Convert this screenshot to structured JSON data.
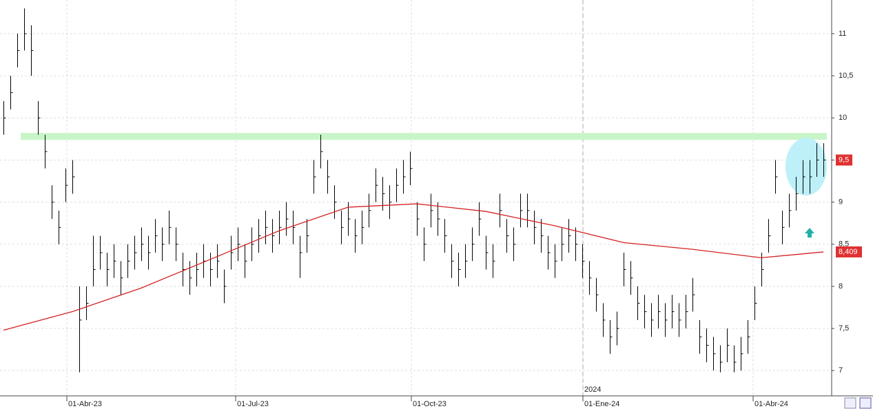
{
  "chart_data": {
    "type": "ohlc",
    "high": [
      10.2,
      10.5,
      11.0,
      11.3,
      11.1,
      10.2,
      9.8,
      9.2,
      8.9,
      9.4,
      9.5,
      8.0,
      8.0,
      8.6,
      8.6,
      8.4,
      8.5,
      8.3,
      8.5,
      8.6,
      8.7,
      8.6,
      8.8,
      8.7,
      8.9,
      8.7,
      8.4,
      8.3,
      8.4,
      8.5,
      8.4,
      8.5,
      8.2,
      8.6,
      8.7,
      8.5,
      8.7,
      8.8,
      8.9,
      8.8,
      8.9,
      9.0,
      8.9,
      8.6,
      8.8,
      9.5,
      9.8,
      9.5,
      9.2,
      8.9,
      9.0,
      8.8,
      8.9,
      9.1,
      9.4,
      9.3,
      9.2,
      9.4,
      9.5,
      9.6,
      9.0,
      8.7,
      9.1,
      9.0,
      8.8,
      8.5,
      8.4,
      8.5,
      8.7,
      9.0,
      8.6,
      8.5,
      9.1,
      8.8,
      8.7,
      9.1,
      9.1,
      8.9,
      8.8,
      8.6,
      8.5,
      8.7,
      8.8,
      8.7,
      8.5,
      8.3,
      8.1,
      7.8,
      7.6,
      7.7,
      8.4,
      8.3,
      8.0,
      7.9,
      7.8,
      7.9,
      7.8,
      7.9,
      7.8,
      7.9,
      8.1,
      7.6,
      7.5,
      7.4,
      7.3,
      7.5,
      7.3,
      7.4,
      7.6,
      8.0,
      8.4,
      8.8,
      9.5,
      8.9,
      9.1,
      9.3,
      9.5,
      9.5,
      9.7,
      9.7
    ],
    "low": [
      9.8,
      10.1,
      10.6,
      10.8,
      10.5,
      9.8,
      9.4,
      8.8,
      8.5,
      9.0,
      9.1,
      6.98,
      7.6,
      8.0,
      8.2,
      8.0,
      8.1,
      7.9,
      8.1,
      8.2,
      8.3,
      8.2,
      8.4,
      8.3,
      8.5,
      8.3,
      8.0,
      7.9,
      8.0,
      8.1,
      8.0,
      8.1,
      7.8,
      8.2,
      8.3,
      8.1,
      8.3,
      8.4,
      8.5,
      8.4,
      8.5,
      8.6,
      8.5,
      8.1,
      8.4,
      9.1,
      9.4,
      9.1,
      8.8,
      8.5,
      8.6,
      8.4,
      8.5,
      8.7,
      9.0,
      8.9,
      8.8,
      9.0,
      9.1,
      9.2,
      8.6,
      8.3,
      8.7,
      8.6,
      8.4,
      8.1,
      8.0,
      8.1,
      8.3,
      8.6,
      8.2,
      8.1,
      8.7,
      8.4,
      8.3,
      8.7,
      8.7,
      8.5,
      8.4,
      8.2,
      8.1,
      8.3,
      8.4,
      8.3,
      8.1,
      7.9,
      7.7,
      7.4,
      7.2,
      7.3,
      8.0,
      7.9,
      7.6,
      7.5,
      7.4,
      7.5,
      7.4,
      7.5,
      7.4,
      7.5,
      7.7,
      7.2,
      7.1,
      7.0,
      6.98,
      7.1,
      6.98,
      7.0,
      7.2,
      7.6,
      8.0,
      8.4,
      9.1,
      8.5,
      8.7,
      8.9,
      9.1,
      9.1,
      9.3,
      9.3
    ],
    "close": [
      10.0,
      10.3,
      10.8,
      11.0,
      10.8,
      10.0,
      9.6,
      9.0,
      8.7,
      9.2,
      9.3,
      7.6,
      7.8,
      8.2,
      8.4,
      8.2,
      8.3,
      8.1,
      8.3,
      8.4,
      8.5,
      8.4,
      8.6,
      8.5,
      8.7,
      8.5,
      8.2,
      8.1,
      8.2,
      8.3,
      8.2,
      8.3,
      8.0,
      8.4,
      8.5,
      8.3,
      8.5,
      8.6,
      8.7,
      8.6,
      8.7,
      8.8,
      8.7,
      8.4,
      8.6,
      9.3,
      9.6,
      9.3,
      9.0,
      8.7,
      8.8,
      8.6,
      8.7,
      8.9,
      9.2,
      9.1,
      9.0,
      9.2,
      9.3,
      9.4,
      8.8,
      8.5,
      8.9,
      8.8,
      8.6,
      8.3,
      8.2,
      8.3,
      8.5,
      8.8,
      8.4,
      8.3,
      8.9,
      8.6,
      8.5,
      8.9,
      8.9,
      8.7,
      8.6,
      8.4,
      8.3,
      8.5,
      8.6,
      8.5,
      8.3,
      8.1,
      7.9,
      7.6,
      7.4,
      7.5,
      8.2,
      8.1,
      7.8,
      7.7,
      7.6,
      7.7,
      7.6,
      7.7,
      7.6,
      7.7,
      7.9,
      7.4,
      7.3,
      7.2,
      7.1,
      7.3,
      7.1,
      7.2,
      7.4,
      7.8,
      8.2,
      8.6,
      9.3,
      8.7,
      8.9,
      9.1,
      9.3,
      9.3,
      9.5,
      9.5
    ],
    "close_last_label": "9,5",
    "color": "#000000",
    "ma": {
      "color": "#d42020",
      "x": [
        0,
        10,
        20,
        30,
        40,
        50,
        60,
        70,
        80,
        90,
        100,
        110,
        119
      ],
      "values": [
        7.48,
        7.7,
        7.98,
        8.32,
        8.66,
        8.94,
        8.98,
        8.89,
        8.72,
        8.52,
        8.44,
        8.34,
        8.409
      ],
      "last_label": "8,409"
    },
    "resistance": {
      "value": 9.78,
      "color": "#c8f5c8"
    },
    "year_label": "2024",
    "xlim": [
      -0.5,
      120.2
    ],
    "xticks": [
      {
        "value": 9.2,
        "label": "01-Abr-23"
      },
      {
        "value": 33.7,
        "label": "01-Jul-23"
      },
      {
        "value": 59.2,
        "label": "01-Oct-23"
      },
      {
        "value": 84.1,
        "label": "01-Ene-24"
      },
      {
        "value": 108.8,
        "label": "01-Abr-24"
      }
    ],
    "ylim": [
      6.7,
      11.4
    ],
    "yticks": [
      7,
      {
        "value": 7.5,
        "label": "7,5"
      },
      8,
      {
        "value": 8.5,
        "label": "8,5"
      },
      9,
      {
        "value": 9.5,
        "label": "9,5"
      },
      10,
      {
        "value": 10.5,
        "label": "10,5"
      },
      11
    ],
    "grid": true
  }
}
